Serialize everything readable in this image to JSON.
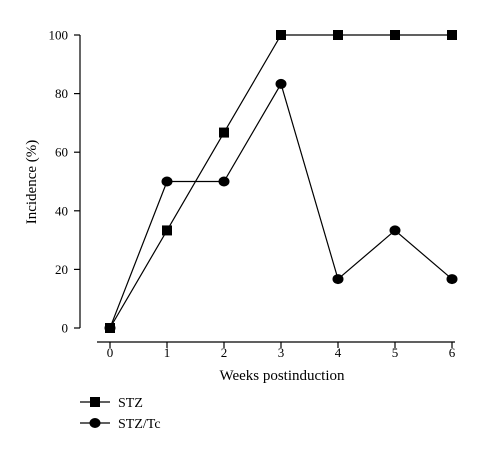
{
  "chart_data": {
    "type": "line",
    "xlabel": "Weeks postinduction",
    "ylabel": "Incidence (%)",
    "xlim": [
      0,
      6
    ],
    "ylim": [
      0,
      100
    ],
    "x_ticks": [
      "0",
      "1",
      "2",
      "3",
      "4",
      "5",
      "6"
    ],
    "y_ticks": [
      "0",
      "20",
      "40",
      "60",
      "80",
      "100"
    ],
    "x": [
      0,
      1,
      2,
      3,
      4,
      5,
      6
    ],
    "series": [
      {
        "name": "STZ",
        "marker": "square",
        "values": [
          0,
          33.3,
          66.7,
          100,
          100,
          100,
          100
        ]
      },
      {
        "name": "STZ/Tc",
        "marker": "circle",
        "values": [
          0,
          50,
          50,
          83.3,
          16.7,
          33.3,
          16.7
        ]
      }
    ],
    "grid": false,
    "legend_position": "bottom-left",
    "colors": {
      "line": "#000000",
      "marker": "#000000"
    }
  }
}
